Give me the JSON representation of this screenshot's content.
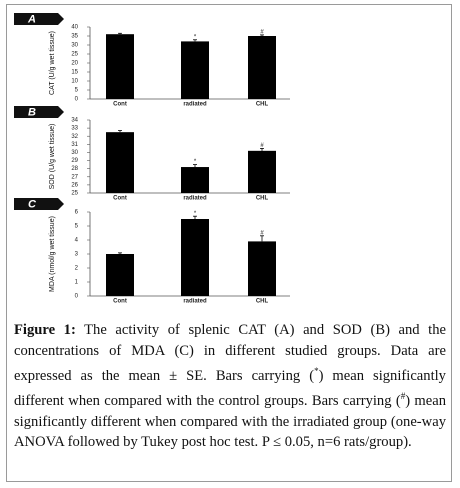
{
  "chart_data": [
    {
      "type": "bar",
      "panel": "A",
      "ylabel": "CAT (U/g wet tissue)",
      "categories": [
        "Cont",
        "radiated",
        "CHL"
      ],
      "values": [
        36,
        32,
        35
      ],
      "errors": [
        0.5,
        0.9,
        0.6
      ],
      "annotations": [
        null,
        "*",
        "#"
      ],
      "color": "#000000",
      "ylim": [
        0,
        40
      ],
      "yticks": [
        0,
        5,
        10,
        15,
        20,
        25,
        30,
        35,
        40
      ]
    },
    {
      "type": "bar",
      "panel": "B",
      "ylabel": "SOD (U/g wet tissue)",
      "categories": [
        "Cont",
        "radiated",
        "CHL"
      ],
      "values": [
        32.5,
        28.2,
        30.2
      ],
      "errors": [
        0.2,
        0.3,
        0.3
      ],
      "annotations": [
        null,
        "*",
        "#"
      ],
      "color": "#000000",
      "ylim": [
        25,
        34
      ],
      "yticks": [
        25,
        26,
        27,
        28,
        29,
        30,
        31,
        32,
        33,
        34
      ]
    },
    {
      "type": "bar",
      "panel": "C",
      "ylabel": "MDA (nmol/g wet tissue)",
      "categories": [
        "Cont",
        "radiated",
        "CHL"
      ],
      "values": [
        3,
        5.5,
        3.9
      ],
      "errors": [
        0.08,
        0.2,
        0.4
      ],
      "annotations": [
        null,
        "*",
        "#"
      ],
      "color": "#000000",
      "ylim": [
        0,
        6
      ],
      "yticks": [
        0,
        1,
        2,
        3,
        4,
        5,
        6
      ]
    }
  ],
  "caption": {
    "label": "Figure 1:",
    "parts": [
      " The activity of splenic CAT (A) and SOD (B) and the concentrations of MDA (C) in different studied groups. Data are expressed as the mean ± SE. Bars carrying (",
      "*",
      ") mean significantly different when compared with the control groups. Bars carrying (",
      "#",
      ") mean significantly different when compared with the irradiated group (one-way ANOVA followed by Tukey post hoc test. P ≤ 0.05, n=6 rats/group)."
    ]
  }
}
